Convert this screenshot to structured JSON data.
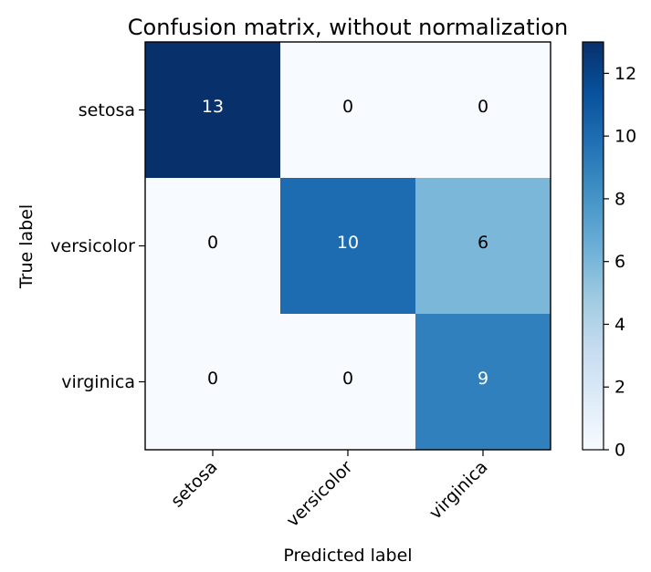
{
  "chart_data": {
    "type": "heatmap",
    "title": "Confusion matrix, without normalization",
    "xlabel": "Predicted label",
    "ylabel": "True label",
    "x_categories": [
      "setosa",
      "versicolor",
      "virginica"
    ],
    "y_categories": [
      "setosa",
      "versicolor",
      "virginica"
    ],
    "values": [
      [
        13,
        0,
        0
      ],
      [
        0,
        10,
        6
      ],
      [
        0,
        0,
        9
      ]
    ],
    "vmin": 0,
    "vmax": 13,
    "colormap": "Blues",
    "colorbar_ticks": [
      "0",
      "2",
      "4",
      "6",
      "8",
      "10",
      "12"
    ],
    "grid": false
  }
}
